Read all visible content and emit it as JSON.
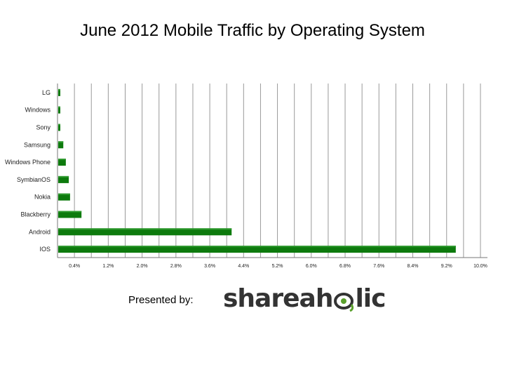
{
  "chart_data": {
    "type": "bar",
    "orientation": "horizontal",
    "title": "June 2012 Mobile Traffic by Operating System",
    "categories": [
      "LG",
      "Windows",
      "Sony",
      "Samsung",
      "Windows Phone",
      "SymbianOS",
      "Nokia",
      "Blackberry",
      "Android",
      "IOS"
    ],
    "values": [
      0.03,
      0.03,
      0.03,
      0.12,
      0.18,
      0.25,
      0.28,
      0.55,
      4.1,
      9.4
    ],
    "xlim": [
      0,
      10.0
    ],
    "x_ticks": [
      "0.4%",
      "1.2%",
      "2.0%",
      "2.8%",
      "3.6%",
      "4.4%",
      "5.2%",
      "6.0%",
      "6.8%",
      "7.6%",
      "8.4%",
      "9.2%",
      "10.0%"
    ],
    "x_tick_values": [
      0.4,
      1.2,
      2.0,
      2.8,
      3.6,
      4.4,
      5.2,
      6.0,
      6.8,
      7.6,
      8.4,
      9.2,
      10.0
    ],
    "x_gridlines": [
      0.4,
      0.8,
      1.2,
      1.6,
      2.0,
      2.4,
      2.8,
      3.2,
      3.6,
      4.0,
      4.4,
      4.8,
      5.2,
      5.6,
      6.0,
      6.4,
      6.8,
      7.2,
      7.6,
      8.0,
      8.4,
      8.8,
      9.2,
      9.6,
      10.0
    ],
    "grid": true,
    "legend": "none",
    "bar_color": "#0d7a0d",
    "xlabel": "",
    "ylabel": ""
  },
  "footer": {
    "presented_by": "Presented by:",
    "logo_left": "shareah",
    "logo_right": "lic",
    "logo_icon": "eye-leaf-icon",
    "logo_color": "#333333",
    "logo_accent": "#5aa02c"
  }
}
